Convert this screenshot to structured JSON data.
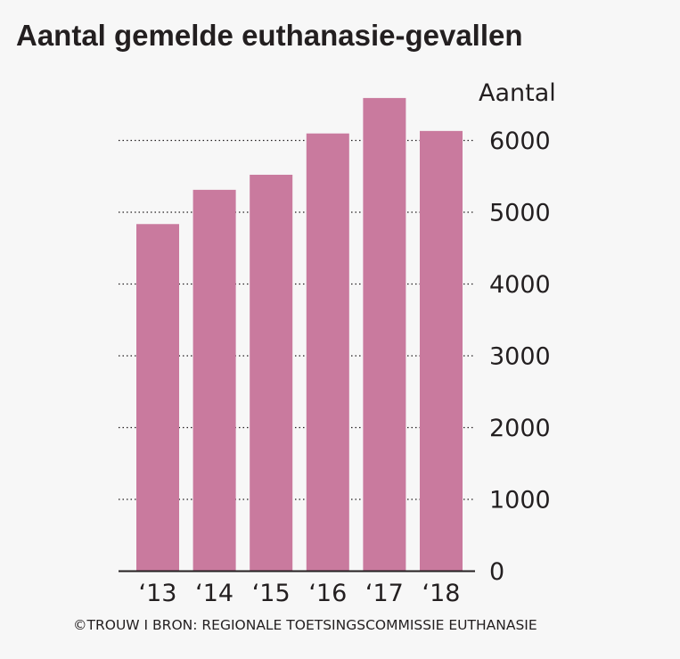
{
  "chart_data": {
    "type": "bar",
    "title": "Aantal gemelde euthanasie-gevallen",
    "ylabel": "Aantal",
    "xlabel": "",
    "categories": [
      "‘13",
      "‘14",
      "‘15",
      "‘16",
      "‘17",
      "‘18"
    ],
    "values": [
      4829,
      5306,
      5516,
      6091,
      6585,
      6126
    ],
    "ylim": [
      0,
      6500
    ],
    "yticks": [
      0,
      1000,
      2000,
      3000,
      4000,
      5000,
      6000
    ],
    "ytick_labels": [
      "0",
      "1000",
      "2000",
      "3000",
      "4000",
      "5000",
      "6000"
    ],
    "grid": "dotted horizontal",
    "bar_color": "#c97a9e",
    "source": "©TROUW I BRON: REGIONALE TOETSINGSCOMMISSIE EUTHANASIE"
  }
}
